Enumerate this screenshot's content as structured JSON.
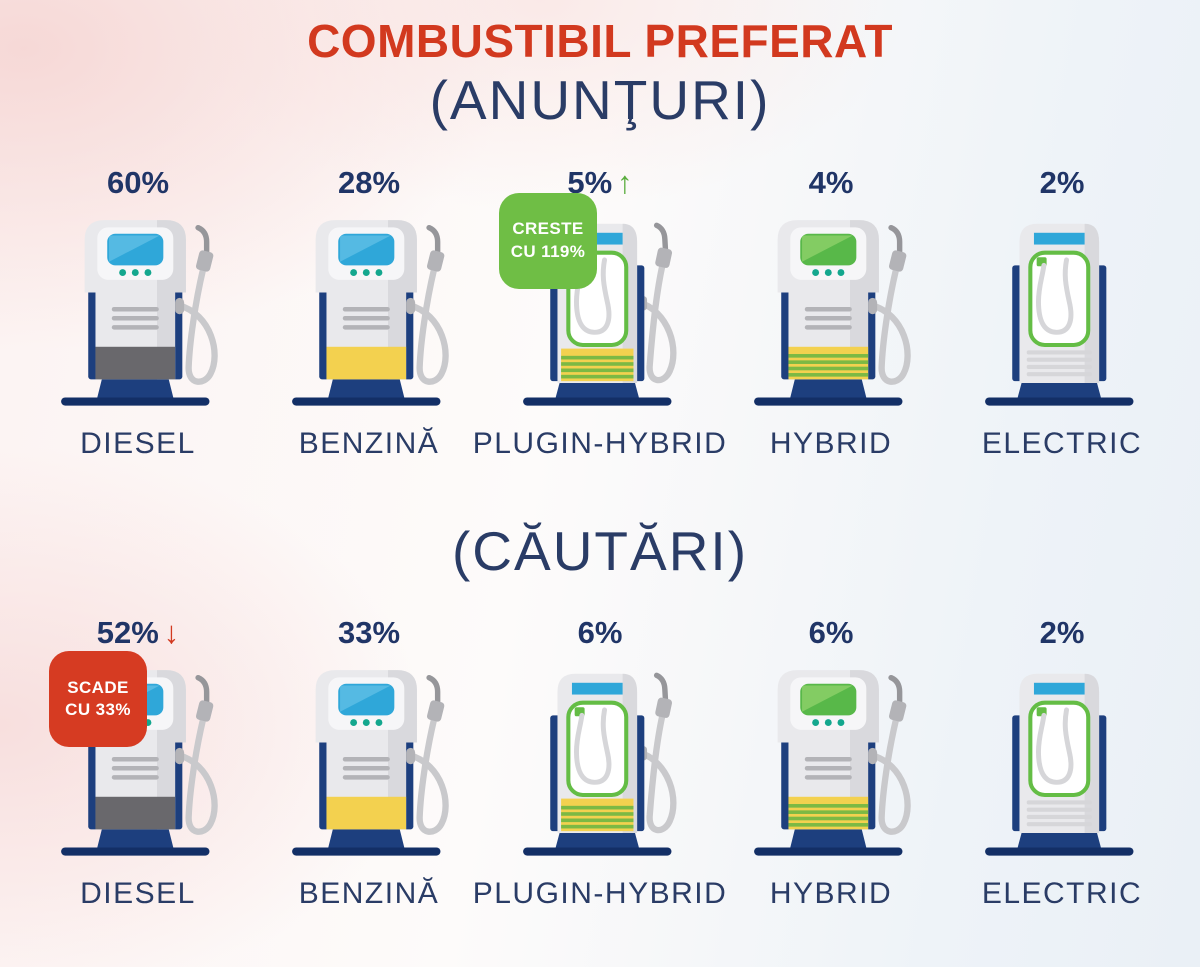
{
  "title": "COMBUSTIBIL PREFERAT",
  "colors": {
    "title": "#d2391f",
    "navy_text": "#203567",
    "subtitle": "#2a3c66",
    "arrow_up": "#5aad3d",
    "arrow_down": "#d2391f",
    "badge_text": "#ffffff"
  },
  "trend": {
    "up_glyph": "↑",
    "down_glyph": "↓"
  },
  "sections": [
    {
      "subtitle": "(ANUNŢURI)",
      "items": [
        {
          "label": "DIESEL",
          "percent": "60%",
          "variant": "diesel"
        },
        {
          "label": "BENZINĂ",
          "percent": "28%",
          "variant": "benzina"
        },
        {
          "label": "PLUGIN-HYBRID",
          "percent": "5%",
          "arrow": "up",
          "badge": {
            "line1": "CRESTE",
            "line2": "CU 119%",
            "color": "#6fbe45"
          },
          "variant": "plugin-hybrid"
        },
        {
          "label": "HYBRID",
          "percent": "4%",
          "variant": "hybrid"
        },
        {
          "label": "ELECTRIC",
          "percent": "2%",
          "variant": "electric"
        }
      ]
    },
    {
      "subtitle": "(CĂUTĂRI)",
      "items": [
        {
          "label": "DIESEL",
          "percent": "52%",
          "arrow": "down",
          "badge": {
            "line1": "SCADE",
            "line2": "CU 33%",
            "color": "#d63b22"
          },
          "variant": "diesel"
        },
        {
          "label": "BENZINĂ",
          "percent": "33%",
          "variant": "benzina"
        },
        {
          "label": "PLUGIN-HYBRID",
          "percent": "6%",
          "variant": "plugin-hybrid"
        },
        {
          "label": "HYBRID",
          "percent": "6%",
          "variant": "hybrid"
        },
        {
          "label": "ELECTRIC",
          "percent": "2%",
          "variant": "electric"
        }
      ]
    }
  ],
  "chart_data": [
    {
      "type": "pictogram",
      "title": "COMBUSTIBIL PREFERAT (ANUNŢURI)",
      "categories": [
        "DIESEL",
        "BENZINĂ",
        "PLUGIN-HYBRID",
        "HYBRID",
        "ELECTRIC"
      ],
      "values": [
        60,
        28,
        5,
        4,
        2
      ],
      "unit": "%",
      "annotations": [
        {
          "category": "PLUGIN-HYBRID",
          "trend": "up",
          "note": "CRESTE CU 119%"
        }
      ]
    },
    {
      "type": "pictogram",
      "title": "COMBUSTIBIL PREFERAT (CĂUTĂRI)",
      "categories": [
        "DIESEL",
        "BENZINĂ",
        "PLUGIN-HYBRID",
        "HYBRID",
        "ELECTRIC"
      ],
      "values": [
        52,
        33,
        6,
        6,
        2
      ],
      "unit": "%",
      "annotations": [
        {
          "category": "DIESEL",
          "trend": "down",
          "note": "SCADE CU 33%"
        }
      ]
    }
  ],
  "pump_palette": {
    "navy": "#1d3f7e",
    "navy_dark": "#132f66",
    "body": "#e9e9ec",
    "body_shade": "#d9d9dd",
    "panel": "#f6f6f8",
    "dot": "#13a78e",
    "line": "#b3b3b7",
    "hose": "#c9c9cc",
    "nozzle": "#b3b3b7",
    "nozzle_dark": "#96969a",
    "cable": "#d6d6d9",
    "ev_line": "#d6d6d9",
    "green": "#64bd45",
    "yellow": "#f3d14f",
    "stripe_green": "#7cb944",
    "blue_bar": "#2fa7d9"
  },
  "pump_variants": {
    "diesel": {
      "type": "gas",
      "screen": "#2fa7d9",
      "screen_hi": "#55bae3",
      "band": "solid",
      "band_color": "#69686c"
    },
    "benzina": {
      "type": "gas",
      "screen": "#2fa7d9",
      "screen_hi": "#55bae3",
      "band": "solid",
      "band_color": "#f3d14f"
    },
    "hybrid": {
      "type": "gas",
      "screen": "#58b849",
      "screen_hi": "#83cc63",
      "band": "stripes"
    },
    "plugin-hybrid": {
      "type": "ev",
      "hose": true,
      "band": "stripes"
    },
    "electric": {
      "type": "ev",
      "hose": false,
      "band": "lines"
    }
  }
}
